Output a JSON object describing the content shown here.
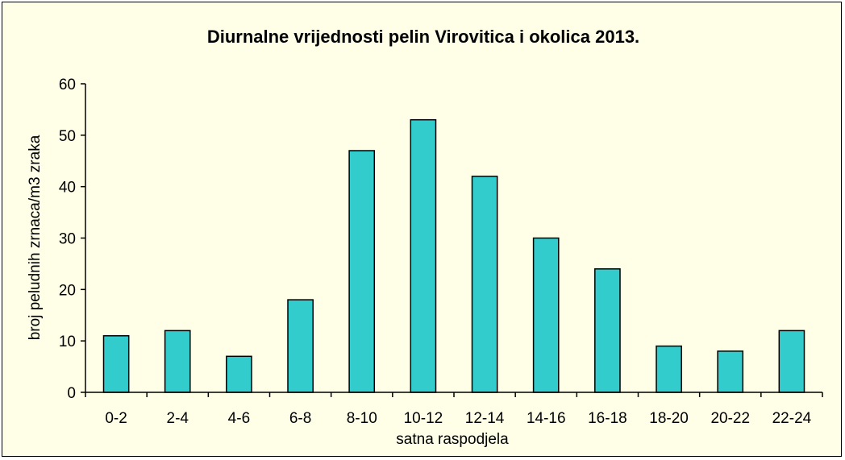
{
  "chart_data": {
    "type": "bar",
    "title": "Diurnalne vrijednosti pelin Virovitica i okolica 2013.",
    "xlabel": "satna raspodjela",
    "ylabel": "broj peludnih zrnaca/m3 zraka",
    "categories": [
      "0-2",
      "2-4",
      "4-6",
      "6-8",
      "8-10",
      "10-12",
      "12-14",
      "14-16",
      "16-18",
      "18-20",
      "20-22",
      "22-24"
    ],
    "values": [
      11,
      12,
      7,
      18,
      47,
      53,
      42,
      30,
      24,
      9,
      8,
      12
    ],
    "ylim": [
      0,
      60
    ],
    "yticks": [
      0,
      10,
      20,
      30,
      40,
      50,
      60
    ],
    "grid": false,
    "legend": "none",
    "colors": {
      "bar": "#33cccc",
      "bar_stroke": "#000000",
      "background": "#ffffe8"
    }
  }
}
